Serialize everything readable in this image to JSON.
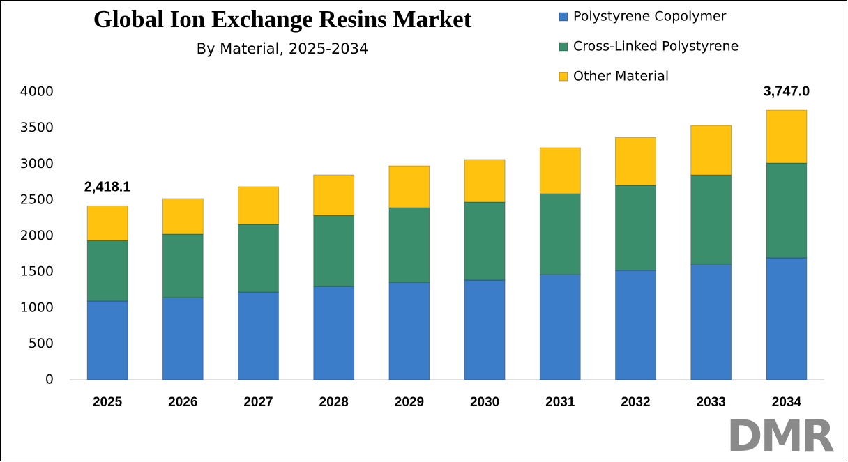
{
  "chart_data": {
    "type": "stacked-bar",
    "title": "Global Ion Exchange Resins Market",
    "subtitle": "By Material, 2025-2034",
    "categories": [
      "2025",
      "2026",
      "2027",
      "2028",
      "2029",
      "2030",
      "2031",
      "2032",
      "2033",
      "2034"
    ],
    "series": [
      {
        "name": "Polystyrene Copolymer",
        "color": "#3b7dc8",
        "values": [
          1095,
          1143,
          1220,
          1298,
          1356,
          1385,
          1462,
          1521,
          1598,
          1695
        ]
      },
      {
        "name": "Cross-Linked Polystyrene",
        "color": "#3a8e6c",
        "values": [
          842,
          881,
          940,
          988,
          1036,
          1085,
          1124,
          1181,
          1249,
          1317
        ]
      },
      {
        "name": "Other Material",
        "color": "#ffc20e",
        "values": [
          481.1,
          494,
          523,
          561,
          581,
          590,
          639,
          668,
          688,
          735.0
        ]
      }
    ],
    "annotations": [
      {
        "category": "2025",
        "value": 2418.1,
        "label": "2,418.1"
      },
      {
        "category": "2034",
        "value": 3747.0,
        "label": "3,747.0"
      }
    ],
    "ylim": [
      0,
      4000
    ],
    "yticks": [
      0,
      500,
      1000,
      1500,
      2000,
      2500,
      3000,
      3500,
      4000
    ],
    "grid": false,
    "legend": "top-right",
    "logo": "DMR"
  }
}
